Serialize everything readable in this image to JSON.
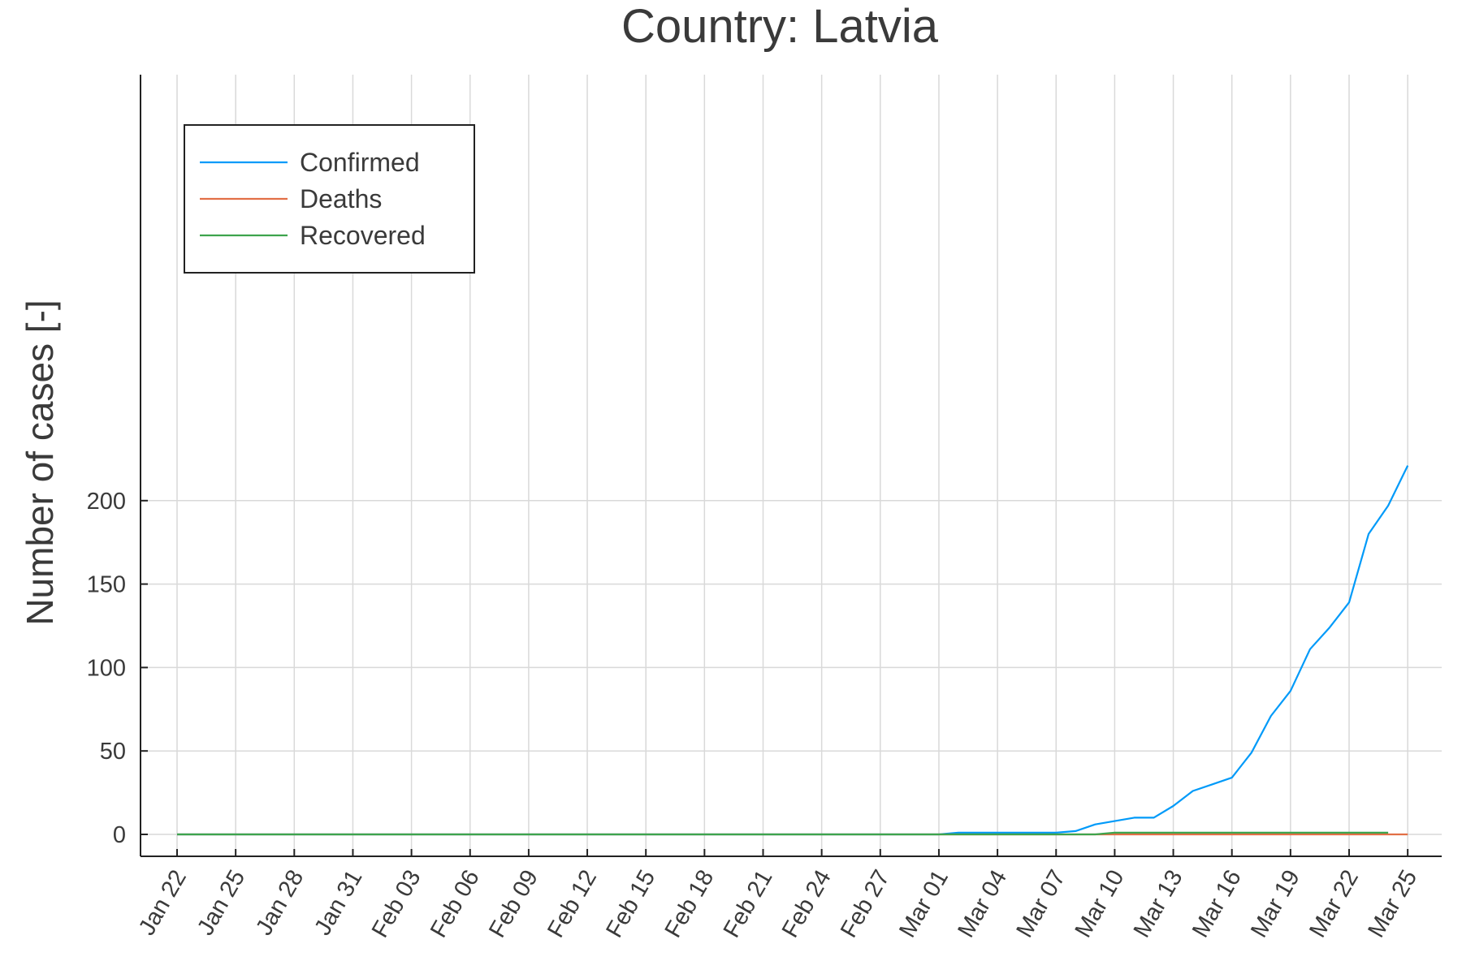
{
  "chart_data": {
    "type": "line",
    "title": "Country: Latvia",
    "xlabel": "",
    "ylabel": "Number of cases [-]",
    "x_start": "2020-01-22",
    "x_ticks": [
      "Jan 22",
      "Jan 25",
      "Jan 28",
      "Jan 31",
      "Feb 03",
      "Feb 06",
      "Feb 09",
      "Feb 12",
      "Feb 15",
      "Feb 18",
      "Feb 21",
      "Feb 24",
      "Feb 27",
      "Mar 01",
      "Mar 04",
      "Mar 07",
      "Mar 10",
      "Mar 13",
      "Mar 16",
      "Mar 19",
      "Mar 22",
      "Mar 25"
    ],
    "y_ticks": [
      0,
      50,
      100,
      150,
      200
    ],
    "ylim": [
      -7,
      228
    ],
    "grid": true,
    "legend_position": "top-left",
    "series": [
      {
        "name": "Confirmed",
        "color": "#009af9",
        "points": [
          [
            "2020-01-22",
            0
          ],
          [
            "2020-03-01",
            0
          ],
          [
            "2020-03-02",
            1
          ],
          [
            "2020-03-07",
            1
          ],
          [
            "2020-03-08",
            2
          ],
          [
            "2020-03-09",
            6
          ],
          [
            "2020-03-10",
            8
          ],
          [
            "2020-03-11",
            10
          ],
          [
            "2020-03-12",
            10
          ],
          [
            "2020-03-13",
            17
          ],
          [
            "2020-03-14",
            26
          ],
          [
            "2020-03-15",
            30
          ],
          [
            "2020-03-16",
            34
          ],
          [
            "2020-03-17",
            49
          ],
          [
            "2020-03-18",
            71
          ],
          [
            "2020-03-19",
            86
          ],
          [
            "2020-03-20",
            111
          ],
          [
            "2020-03-21",
            124
          ],
          [
            "2020-03-22",
            139
          ],
          [
            "2020-03-23",
            180
          ],
          [
            "2020-03-24",
            197
          ],
          [
            "2020-03-25",
            221
          ]
        ]
      },
      {
        "name": "Deaths",
        "color": "#e26f46",
        "points": [
          [
            "2020-01-22",
            0
          ],
          [
            "2020-03-25",
            0
          ]
        ]
      },
      {
        "name": "Recovered",
        "color": "#3da44d",
        "points": [
          [
            "2020-01-22",
            0
          ],
          [
            "2020-03-09",
            0
          ],
          [
            "2020-03-10",
            1
          ],
          [
            "2020-03-24",
            1
          ]
        ]
      }
    ]
  }
}
